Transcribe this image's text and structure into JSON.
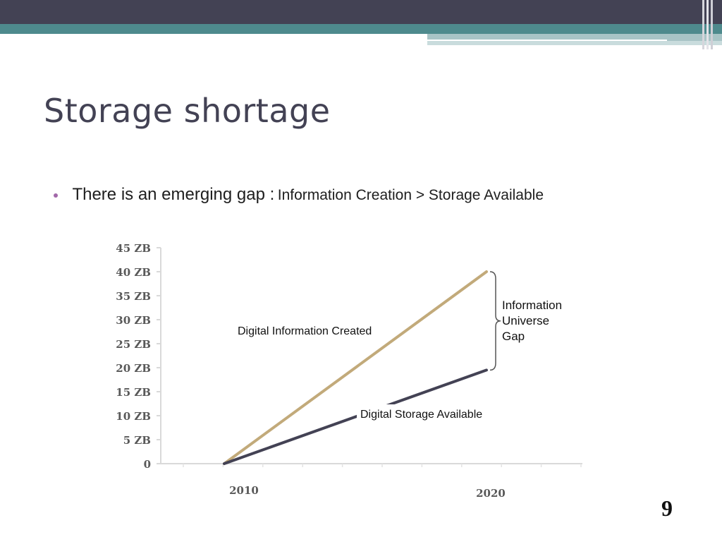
{
  "slide": {
    "title": "Storage shortage",
    "bullet_main": "There is an emerging gap  :",
    "bullet_sub": "Information Creation > Storage Available",
    "page_number": "9"
  },
  "colors": {
    "header_dark": "#434254",
    "header_teal": "#4e8a8d",
    "created_line": "#c2aa7a",
    "storage_line": "#434254",
    "bullet": "#a268a9"
  },
  "chart_data": {
    "type": "line",
    "x": [
      2010,
      2020
    ],
    "x_tick_labels": [
      "2010",
      "2020"
    ],
    "y_tick_labels": [
      "0",
      "5 ZB",
      "10 ZB",
      "15 ZB",
      "20 ZB",
      "25 ZB",
      "30 ZB",
      "35 ZB",
      "40 ZB",
      "45 ZB"
    ],
    "ylim": [
      0,
      45
    ],
    "y_unit": "ZB",
    "grid": false,
    "series": [
      {
        "name": "Digital Information Created",
        "values": [
          0,
          40
        ]
      },
      {
        "name": "Digital Storage Available",
        "values": [
          0,
          19.5
        ]
      }
    ],
    "annotations": [
      "Information",
      "Universe",
      "Gap"
    ]
  }
}
